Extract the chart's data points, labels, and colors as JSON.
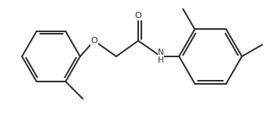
{
  "bg_color": "#ffffff",
  "line_color": "#2a2a2a",
  "line_width": 1.4,
  "fig_width": 3.54,
  "fig_height": 1.48,
  "dpi": 100,
  "xlim": [
    0,
    354
  ],
  "ylim": [
    0,
    148
  ]
}
